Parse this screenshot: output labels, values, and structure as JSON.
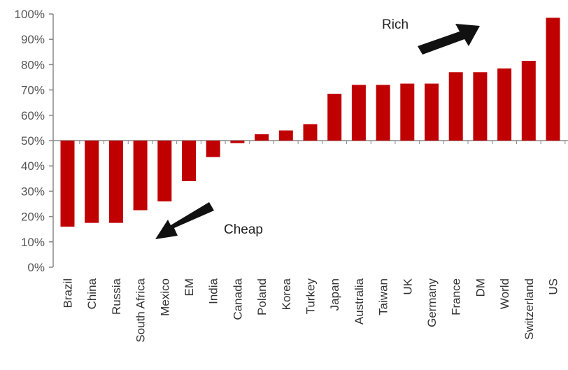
{
  "chart_data": {
    "type": "bar",
    "title": "",
    "xlabel": "",
    "ylabel": "",
    "baseline": 50,
    "ylim": [
      0,
      100
    ],
    "yticks": [
      "0%",
      "10%",
      "20%",
      "30%",
      "40%",
      "50%",
      "60%",
      "70%",
      "80%",
      "90%",
      "100%"
    ],
    "categories": [
      "Brazil",
      "China",
      "Russia",
      "South Africa",
      "Mexico",
      "EM",
      "India",
      "Canada",
      "Poland",
      "Korea",
      "Turkey",
      "Japan",
      "Australia",
      "Taiwan",
      "UK",
      "Germany",
      "France",
      "DM",
      "World",
      "Switzerland",
      "US"
    ],
    "values": [
      16,
      17.5,
      17.5,
      22.5,
      26,
      34,
      43.5,
      49,
      52.5,
      54,
      56.5,
      68.5,
      72,
      72,
      72.5,
      72.5,
      77,
      77,
      78.5,
      81.5,
      98.5
    ],
    "bar_color": "#c00000",
    "grid": false,
    "annotations": [
      {
        "text": "Rich"
      },
      {
        "text": "Cheap"
      }
    ]
  }
}
